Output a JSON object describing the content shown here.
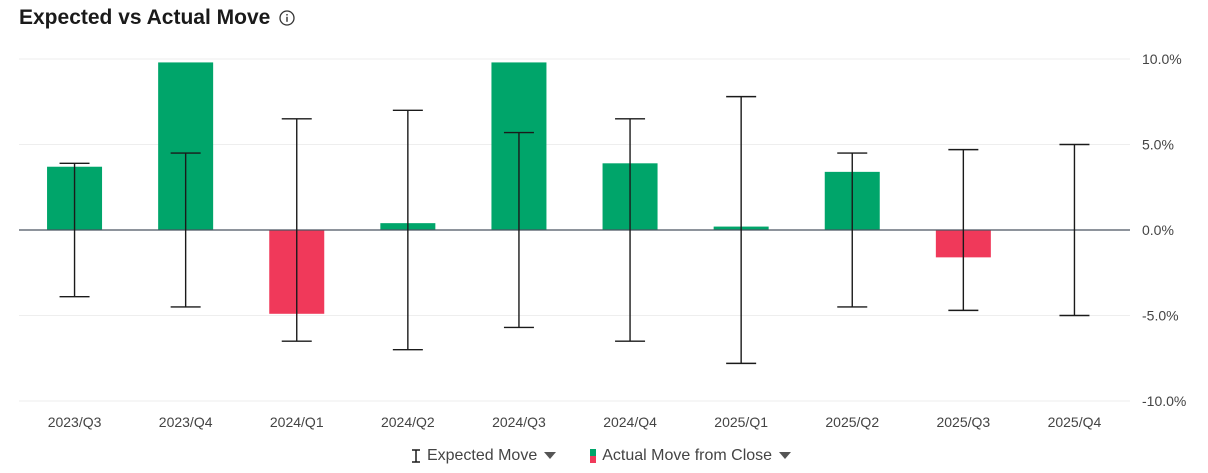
{
  "title": "Expected vs Actual Move",
  "legend": {
    "expected_label": "Expected Move",
    "actual_label": "Actual Move from Close"
  },
  "colors": {
    "positive": "#00a56a",
    "negative": "#f0395a",
    "error_bar": "#1a1a1a",
    "zero_line": "#4a5560",
    "grid": "#eeeeee"
  },
  "icons": {
    "info": "info-icon",
    "dropdown": "caret-down-icon"
  },
  "chart_data": {
    "type": "bar",
    "title": "Expected vs Actual Move",
    "categories": [
      "2023/Q3",
      "2023/Q4",
      "2024/Q1",
      "2024/Q2",
      "2024/Q3",
      "2024/Q4",
      "2025/Q1",
      "2025/Q2",
      "2025/Q3",
      "2025/Q4"
    ],
    "series": [
      {
        "name": "Actual Move from Close",
        "values": [
          3.7,
          9.8,
          -4.9,
          0.4,
          9.8,
          3.9,
          0.2,
          3.4,
          -1.6,
          null
        ]
      },
      {
        "name": "Expected Move",
        "values": [
          3.9,
          4.5,
          6.5,
          7.0,
          5.7,
          6.5,
          7.8,
          4.5,
          4.7,
          5.0
        ]
      }
    ],
    "y_ticks": [
      "10.0%",
      "5.0%",
      "0.0%",
      "-5.0%",
      "-10.0%"
    ],
    "ylim": [
      -10,
      10
    ],
    "y_axis_position": "right",
    "grid": true,
    "legend_position": "bottom"
  }
}
